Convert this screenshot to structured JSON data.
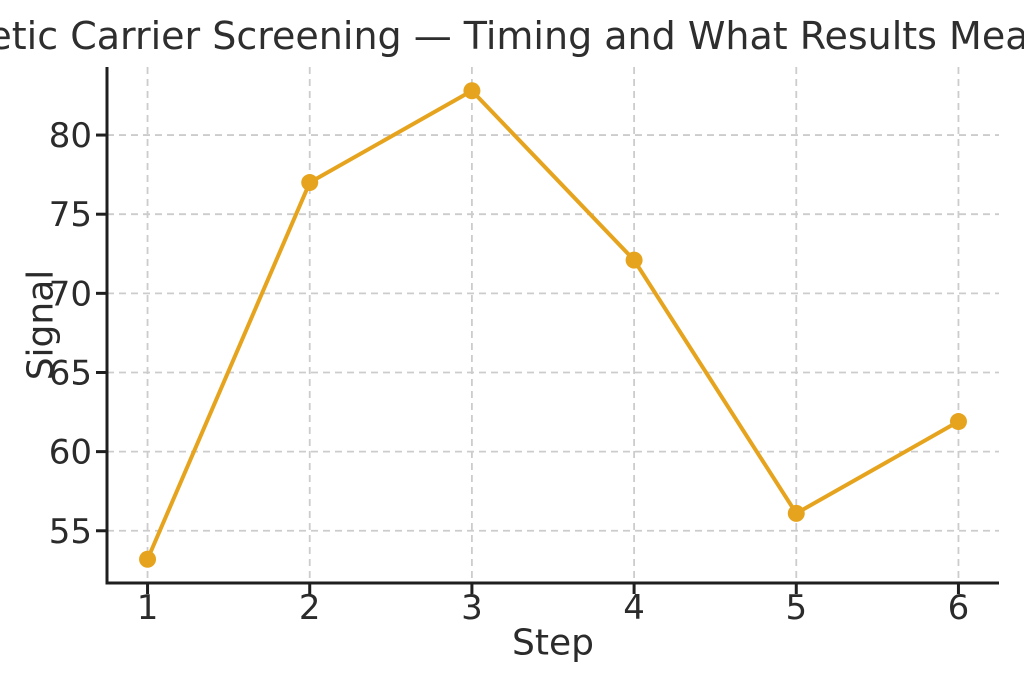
{
  "chart_data": {
    "type": "line",
    "title": "Genetic Carrier Screening — Timing and What Results Mean for You",
    "xlabel": "Step",
    "ylabel": "Signal",
    "x": [
      1,
      2,
      3,
      4,
      5,
      6
    ],
    "series": [
      {
        "name": "Signal",
        "values": [
          53.2,
          77.0,
          82.8,
          72.1,
          56.1,
          61.9
        ]
      }
    ],
    "xticks": [
      1,
      2,
      3,
      4,
      5,
      6
    ],
    "yticks": [
      55,
      60,
      65,
      70,
      75,
      80
    ],
    "xlim": [
      0.75,
      6.25
    ],
    "ylim": [
      51.7,
      84.3
    ],
    "grid": true,
    "legend_position": "none",
    "colors": {
      "line": "#E6A41E",
      "marker": "#E6A41E",
      "grid": "#cccccc",
      "axis": "#1f1f1f",
      "text": "#2b2b2b",
      "background": "#ffffff"
    }
  }
}
